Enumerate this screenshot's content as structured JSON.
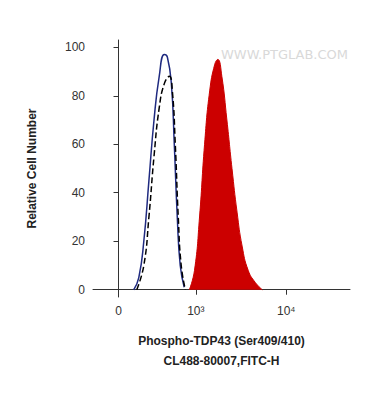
{
  "chart_data": {
    "type": "histogram",
    "xlabel": [
      "Phospho-TDP43 (Ser409/410)",
      "CL488-80007,FITC-H"
    ],
    "ylabel": "Relative Cell Number",
    "annotation": "WWW.PTGLAB.COM",
    "log": "x",
    "grid": false,
    "xlim": [
      -200,
      50000
    ],
    "xticks": [
      0,
      {
        "value": 1000,
        "label": "10³"
      },
      {
        "value": 10000,
        "label": "10⁴"
      }
    ],
    "ylim": [
      -3,
      103
    ],
    "yticks": [
      0,
      20,
      40,
      60,
      80,
      100
    ],
    "series": [
      {
        "color": "#1f2a80",
        "line_style": "solid",
        "type": "line",
        "x": [
          114,
          155,
          198,
          245,
          296,
          353,
          415,
          455,
          512,
          557,
          606,
          658,
          734
        ],
        "values": [
          0,
          5,
          20,
          45,
          70,
          88,
          97,
          96,
          85,
          60,
          30,
          10,
          1
        ]
      },
      {
        "color": "#000000",
        "line_style": "dashed",
        "type": "line",
        "x": [
          138,
          198,
          245,
          296,
          353,
          415,
          483,
          527,
          573,
          623,
          676,
          757
        ],
        "values": [
          0,
          10,
          30,
          55,
          75,
          85,
          88,
          82,
          60,
          30,
          10,
          0
        ]
      },
      {
        "color": "#cc0000",
        "line_style": "solid",
        "type": "area",
        "x": [
          843,
          966,
          1102,
          1256,
          1433,
          1633,
          1766,
          1958,
          2227,
          2535,
          2883,
          3277,
          3822,
          4573,
          5469
        ],
        "values": [
          0,
          8,
          30,
          60,
          82,
          93,
          95,
          88,
          70,
          50,
          32,
          18,
          8,
          3,
          0
        ]
      }
    ]
  }
}
